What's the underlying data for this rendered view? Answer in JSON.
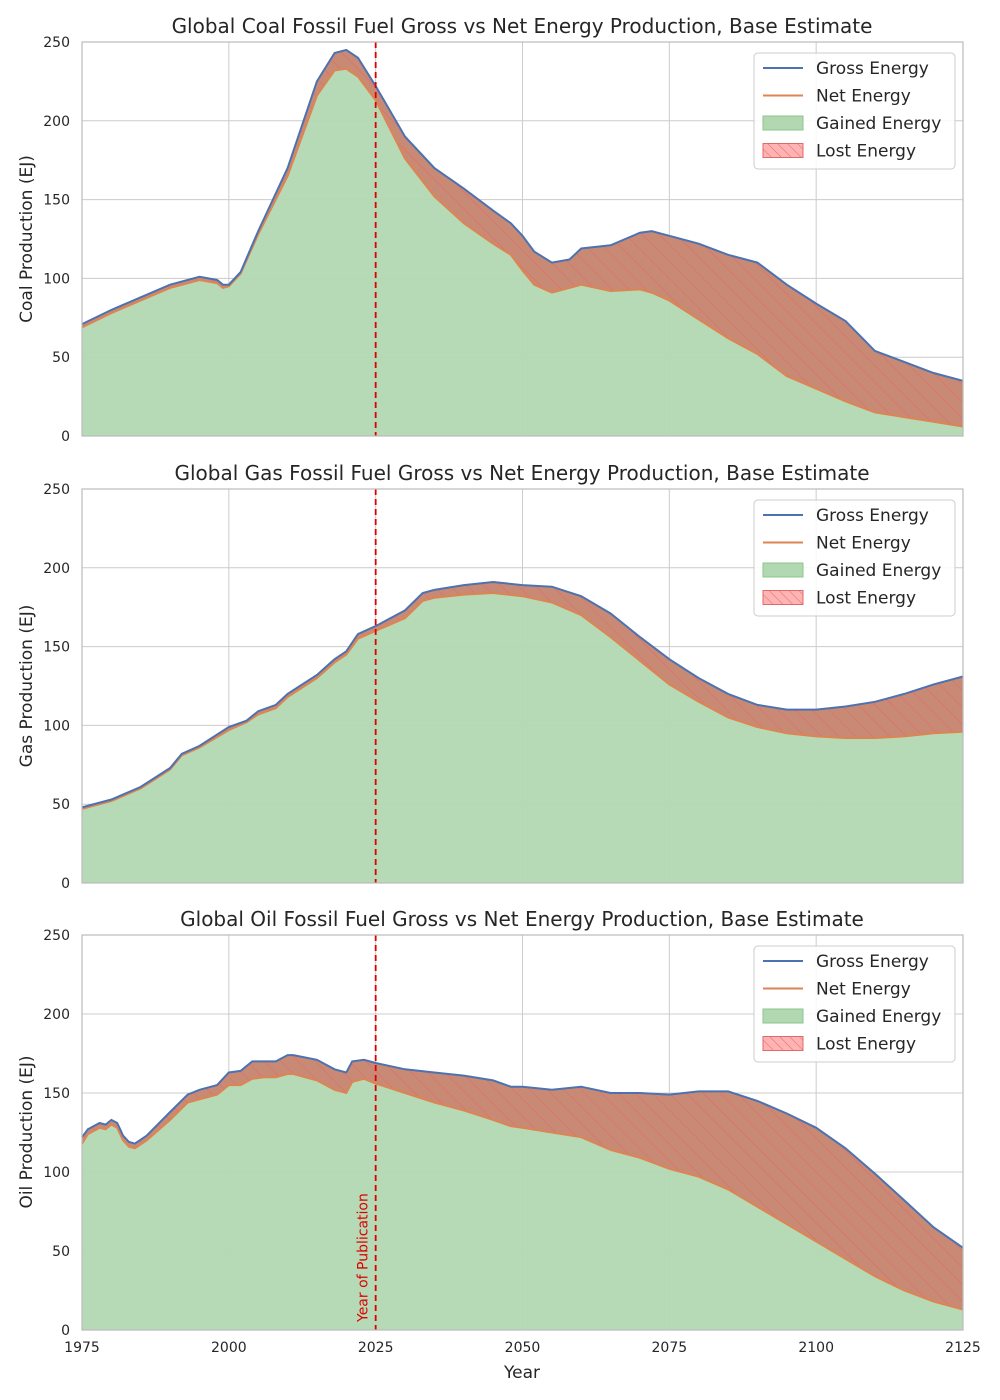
{
  "colors": {
    "gross": "#4c72b0",
    "net": "#dd8452",
    "gained_fill": "#b2d8b2",
    "lost_fill": "#c98a75",
    "lost_hatch": "#e06a6a",
    "publication_line": "#dd0000",
    "grid": "#cccccc",
    "frame": "#bbbbbb"
  },
  "chart_data": [
    {
      "type": "area",
      "title": "Global Coal Fossil Fuel Gross vs Net Energy Production, Base Estimate",
      "ylabel": "Coal Production (EJ)",
      "xlabel": "",
      "xlim": [
        1975,
        2125
      ],
      "ylim": [
        0,
        250
      ],
      "xticks": [
        "1975",
        "2000",
        "2025",
        "2050",
        "2075",
        "2100",
        "2125"
      ],
      "yticks": [
        "0",
        "50",
        "100",
        "150",
        "200",
        "250"
      ],
      "grid": true,
      "legend": {
        "placement": "top-right",
        "entries": [
          "Gross Energy",
          "Net Energy",
          "Gained Energy",
          "Lost Energy"
        ]
      },
      "publication_year": 2025,
      "annotation": "",
      "x": [
        1975,
        1980,
        1985,
        1990,
        1995,
        1998,
        1999,
        2000,
        2002,
        2005,
        2010,
        2015,
        2018,
        2020,
        2022,
        2025,
        2030,
        2035,
        2040,
        2045,
        2048,
        2050,
        2052,
        2055,
        2058,
        2060,
        2065,
        2070,
        2072,
        2075,
        2080,
        2085,
        2090,
        2095,
        2100,
        2105,
        2110,
        2115,
        2120,
        2125
      ],
      "series": [
        {
          "name": "Gross Energy",
          "values": [
            71,
            80,
            88,
            96,
            101,
            99,
            96,
            96,
            104,
            130,
            170,
            225,
            243,
            245,
            240,
            222,
            190,
            170,
            157,
            143,
            135,
            127,
            117,
            110,
            112,
            119,
            121,
            129,
            130,
            127,
            122,
            115,
            110,
            96,
            84,
            73,
            54,
            47,
            40,
            35
          ]
        },
        {
          "name": "Net Energy",
          "values": [
            69,
            78,
            86,
            94,
            99,
            97,
            94,
            95,
            103,
            128,
            165,
            216,
            232,
            233,
            228,
            213,
            176,
            152,
            135,
            122,
            115,
            105,
            96,
            91,
            94,
            96,
            92,
            93,
            91,
            86,
            74,
            62,
            52,
            38,
            30,
            22,
            15,
            12,
            9,
            6
          ]
        }
      ]
    },
    {
      "type": "area",
      "title": "Global Gas Fossil Fuel Gross vs Net Energy Production, Base Estimate",
      "ylabel": "Gas Production (EJ)",
      "xlabel": "",
      "xlim": [
        1975,
        2125
      ],
      "ylim": [
        0,
        250
      ],
      "xticks": [
        "1975",
        "2000",
        "2025",
        "2050",
        "2075",
        "2100",
        "2125"
      ],
      "yticks": [
        "0",
        "50",
        "100",
        "150",
        "200",
        "250"
      ],
      "grid": true,
      "legend": {
        "placement": "top-right",
        "entries": [
          "Gross Energy",
          "Net Energy",
          "Gained Energy",
          "Lost Energy"
        ]
      },
      "publication_year": 2025,
      "annotation": "",
      "x": [
        1975,
        1978,
        1980,
        1985,
        1990,
        1992,
        1995,
        2000,
        2003,
        2005,
        2008,
        2010,
        2015,
        2018,
        2020,
        2022,
        2025,
        2030,
        2033,
        2035,
        2040,
        2045,
        2050,
        2055,
        2060,
        2065,
        2070,
        2075,
        2080,
        2085,
        2090,
        2095,
        2100,
        2105,
        2110,
        2115,
        2120,
        2125
      ],
      "series": [
        {
          "name": "Gross Energy",
          "values": [
            48,
            51,
            53,
            61,
            73,
            82,
            87,
            99,
            103,
            109,
            113,
            120,
            132,
            142,
            147,
            158,
            163,
            173,
            184,
            186,
            189,
            191,
            189,
            188,
            182,
            171,
            156,
            142,
            130,
            120,
            113,
            110,
            110,
            112,
            115,
            120,
            126,
            131
          ]
        },
        {
          "name": "Net Energy",
          "values": [
            47,
            50,
            52,
            60,
            72,
            81,
            86,
            97,
            102,
            107,
            111,
            118,
            130,
            140,
            145,
            155,
            160,
            168,
            179,
            181,
            183,
            184,
            182,
            178,
            170,
            156,
            141,
            126,
            115,
            105,
            99,
            95,
            93,
            92,
            92,
            93,
            95,
            96
          ]
        }
      ]
    },
    {
      "type": "area",
      "title": "Global Oil Fossil Fuel Gross vs Net Energy Production, Base Estimate",
      "ylabel": "Oil Production (EJ)",
      "xlabel": "Year",
      "xlim": [
        1975,
        2125
      ],
      "ylim": [
        0,
        250
      ],
      "xticks": [
        "1975",
        "2000",
        "2025",
        "2050",
        "2075",
        "2100",
        "2125"
      ],
      "yticks": [
        "0",
        "50",
        "100",
        "150",
        "200",
        "250"
      ],
      "grid": true,
      "legend": {
        "placement": "top-right",
        "entries": [
          "Gross Energy",
          "Net Energy",
          "Gained Energy",
          "Lost Energy"
        ]
      },
      "publication_year": 2025,
      "annotation": "Year of Publication",
      "x": [
        1975,
        1976,
        1978,
        1979,
        1980,
        1981,
        1982,
        1983,
        1984,
        1986,
        1990,
        1993,
        1995,
        1998,
        2000,
        2002,
        2004,
        2006,
        2008,
        2010,
        2011,
        2015,
        2018,
        2020,
        2021,
        2023,
        2025,
        2030,
        2035,
        2040,
        2045,
        2048,
        2050,
        2055,
        2060,
        2065,
        2070,
        2075,
        2080,
        2085,
        2090,
        2095,
        2100,
        2105,
        2110,
        2115,
        2120,
        2125
      ],
      "series": [
        {
          "name": "Gross Energy",
          "values": [
            122,
            127,
            131,
            130,
            133,
            131,
            123,
            119,
            118,
            123,
            138,
            149,
            152,
            155,
            163,
            164,
            170,
            170,
            170,
            174,
            174,
            171,
            165,
            163,
            170,
            171,
            169,
            165,
            163,
            161,
            158,
            154,
            154,
            152,
            154,
            150,
            150,
            149,
            151,
            151,
            145,
            137,
            128,
            115,
            99,
            82,
            65,
            52
          ]
        },
        {
          "name": "Net Energy",
          "values": [
            118,
            124,
            128,
            127,
            130,
            128,
            120,
            116,
            115,
            120,
            133,
            144,
            146,
            149,
            155,
            155,
            159,
            160,
            160,
            162,
            162,
            158,
            152,
            150,
            157,
            159,
            156,
            150,
            144,
            139,
            133,
            129,
            128,
            125,
            122,
            114,
            109,
            102,
            97,
            89,
            78,
            67,
            56,
            45,
            34,
            25,
            18,
            13
          ]
        }
      ]
    }
  ]
}
